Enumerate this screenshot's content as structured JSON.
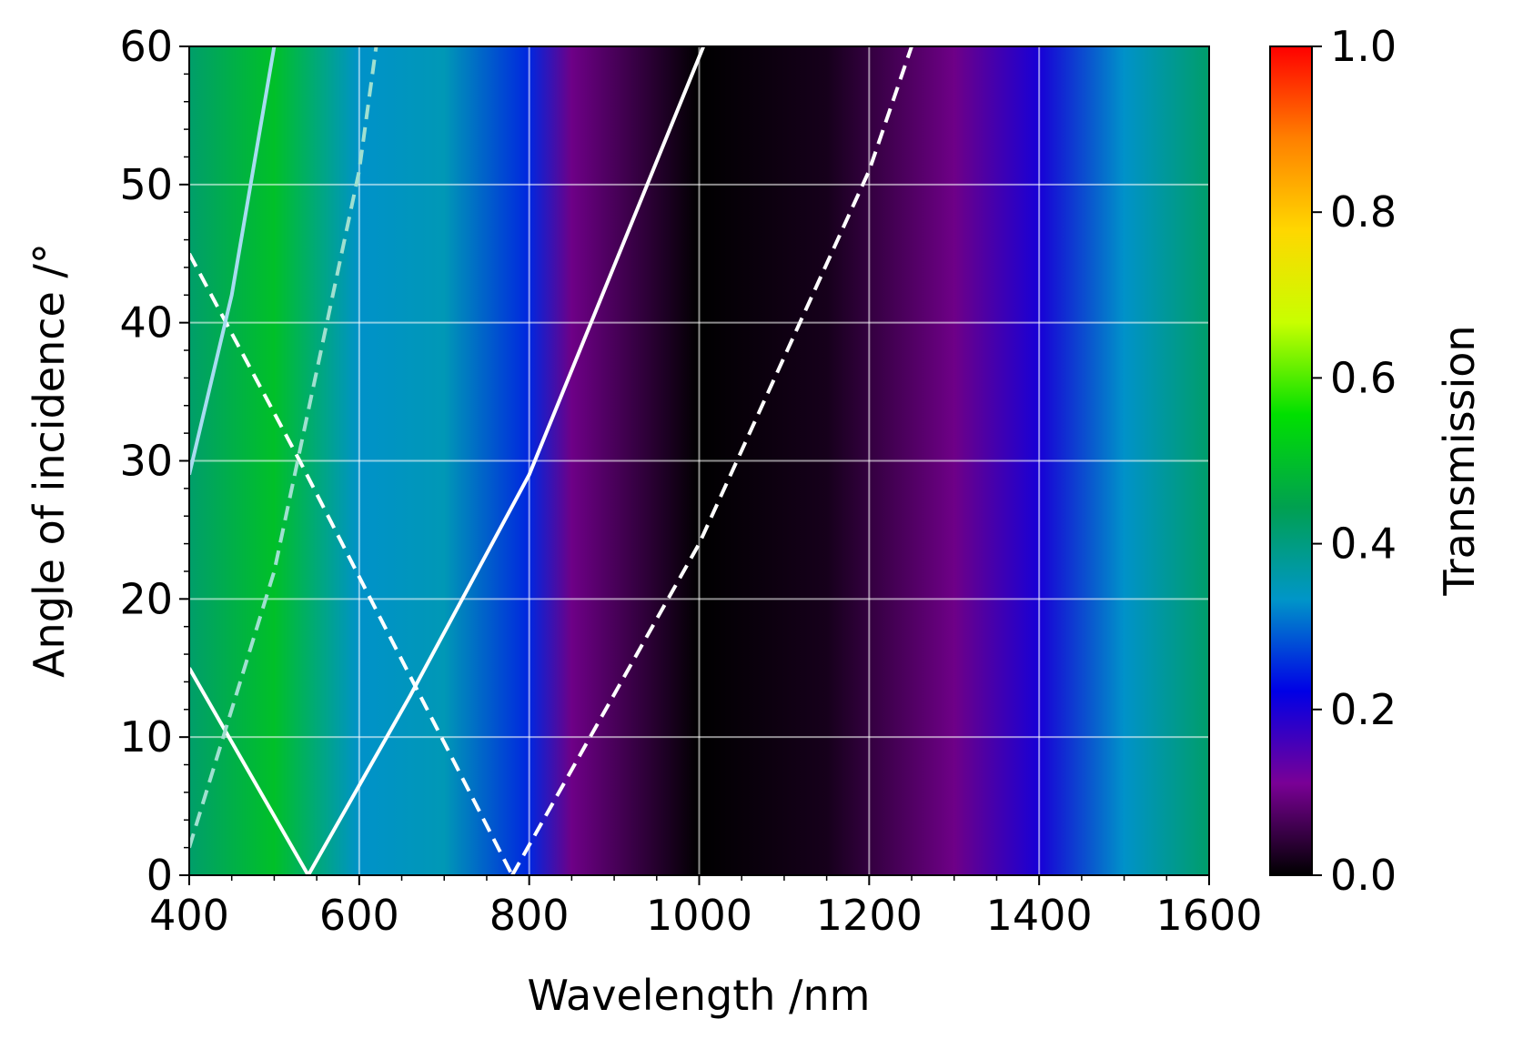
{
  "chart_data": {
    "type": "heatmap",
    "xlabel": "Wavelength /nm",
    "ylabel": "Angle of incidence /°",
    "colorbar_label": "Transmission",
    "xlim": [
      400,
      1600
    ],
    "ylim": [
      0,
      60
    ],
    "clim": [
      0.0,
      1.0
    ],
    "xticks": [
      "400",
      "600",
      "800",
      "1000",
      "1200",
      "1400",
      "1600"
    ],
    "xtick_values": [
      400,
      600,
      800,
      1000,
      1200,
      1400,
      1600
    ],
    "yticks": [
      "0",
      "10",
      "20",
      "30",
      "40",
      "50",
      "60"
    ],
    "ytick_values": [
      0,
      10,
      20,
      30,
      40,
      50,
      60
    ],
    "colorbar_ticks": [
      "0.0",
      "0.2",
      "0.4",
      "0.6",
      "0.8",
      "1.0"
    ],
    "colorbar_tick_values": [
      0.0,
      0.2,
      0.4,
      0.6,
      0.8,
      1.0
    ],
    "grid": true,
    "colormap": [
      "#000000",
      "#7a0096",
      "#0000e6",
      "#0096c8",
      "#00a050",
      "#00e000",
      "#c8ff00",
      "#ffd700",
      "#ff8000",
      "#ff0000"
    ],
    "transmission_profile_at_normal_incidence": [
      {
        "wavelength": 400,
        "T": 0.42
      },
      {
        "wavelength": 500,
        "T": 0.5
      },
      {
        "wavelength": 600,
        "T": 0.33
      },
      {
        "wavelength": 700,
        "T": 0.35
      },
      {
        "wavelength": 800,
        "T": 0.25
      },
      {
        "wavelength": 850,
        "T": 0.1
      },
      {
        "wavelength": 1000,
        "T": 0.0
      },
      {
        "wavelength": 1150,
        "T": 0.02
      },
      {
        "wavelength": 1300,
        "T": 0.1
      },
      {
        "wavelength": 1400,
        "T": 0.2
      },
      {
        "wavelength": 1500,
        "T": 0.33
      },
      {
        "wavelength": 1600,
        "T": 0.42
      }
    ],
    "overlay_lines": [
      {
        "style": "solid",
        "color": "#ffffff",
        "points": [
          [
            400,
            15
          ],
          [
            540,
            0
          ]
        ]
      },
      {
        "style": "solid",
        "color": "#ffffff",
        "points": [
          [
            540,
            0
          ],
          [
            660,
            13
          ],
          [
            800,
            29
          ],
          [
            1005,
            60
          ]
        ]
      },
      {
        "style": "dashed",
        "color": "#ffffff",
        "points": [
          [
            400,
            45
          ],
          [
            530,
            30
          ],
          [
            780,
            0
          ]
        ]
      },
      {
        "style": "dashed",
        "color": "#ffffff",
        "points": [
          [
            780,
            0
          ],
          [
            1000,
            24
          ],
          [
            1200,
            51
          ],
          [
            1250,
            60
          ]
        ]
      },
      {
        "style": "solid",
        "color": "#a8dcf0",
        "points": [
          [
            400,
            29
          ],
          [
            450,
            42
          ],
          [
            500,
            60
          ]
        ]
      },
      {
        "style": "dashed",
        "color": "#a0e0d0",
        "points": [
          [
            400,
            2
          ],
          [
            500,
            22
          ],
          [
            600,
            51
          ],
          [
            620,
            60
          ]
        ]
      }
    ]
  }
}
